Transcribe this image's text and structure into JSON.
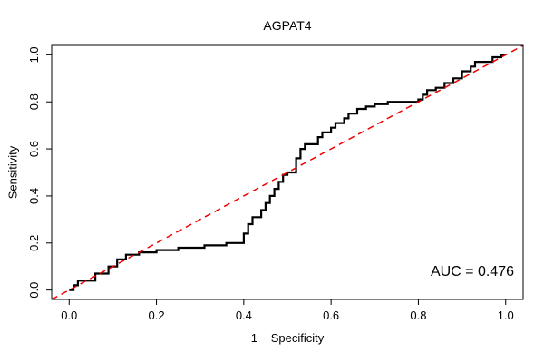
{
  "chart_data": {
    "type": "line",
    "title": "AGPAT4",
    "xlabel": "1 − Specificity",
    "ylabel": "Sensitivity",
    "annotation": "AUC = 0.476",
    "auc": 0.476,
    "xlim": [
      0,
      1
    ],
    "ylim": [
      0,
      1
    ],
    "grid": false,
    "legend": "none",
    "x_ticks": [
      0.0,
      0.2,
      0.4,
      0.6,
      0.8,
      1.0
    ],
    "y_ticks": [
      0.0,
      0.2,
      0.4,
      0.6,
      0.8,
      1.0
    ],
    "x_tick_labels": [
      "0.0",
      "0.2",
      "0.4",
      "0.6",
      "0.8",
      "1.0"
    ],
    "y_tick_labels": [
      "0.0",
      "0.2",
      "0.4",
      "0.6",
      "0.8",
      "1.0"
    ],
    "series": [
      {
        "name": "roc-curve",
        "color": "#000000",
        "width": 2.2,
        "dash": "",
        "span_full": false,
        "points": [
          [
            0.0,
            0.0
          ],
          [
            0.01,
            0.0
          ],
          [
            0.01,
            0.02
          ],
          [
            0.02,
            0.02
          ],
          [
            0.02,
            0.04
          ],
          [
            0.06,
            0.04
          ],
          [
            0.06,
            0.07
          ],
          [
            0.09,
            0.07
          ],
          [
            0.09,
            0.1
          ],
          [
            0.11,
            0.1
          ],
          [
            0.11,
            0.13
          ],
          [
            0.13,
            0.13
          ],
          [
            0.13,
            0.15
          ],
          [
            0.16,
            0.15
          ],
          [
            0.16,
            0.16
          ],
          [
            0.2,
            0.16
          ],
          [
            0.2,
            0.17
          ],
          [
            0.25,
            0.17
          ],
          [
            0.25,
            0.18
          ],
          [
            0.31,
            0.18
          ],
          [
            0.31,
            0.19
          ],
          [
            0.36,
            0.19
          ],
          [
            0.36,
            0.2
          ],
          [
            0.4,
            0.2
          ],
          [
            0.4,
            0.24
          ],
          [
            0.41,
            0.24
          ],
          [
            0.41,
            0.28
          ],
          [
            0.42,
            0.28
          ],
          [
            0.42,
            0.31
          ],
          [
            0.44,
            0.31
          ],
          [
            0.44,
            0.34
          ],
          [
            0.45,
            0.34
          ],
          [
            0.45,
            0.37
          ],
          [
            0.46,
            0.37
          ],
          [
            0.46,
            0.4
          ],
          [
            0.47,
            0.4
          ],
          [
            0.47,
            0.43
          ],
          [
            0.48,
            0.43
          ],
          [
            0.48,
            0.46
          ],
          [
            0.49,
            0.46
          ],
          [
            0.49,
            0.49
          ],
          [
            0.5,
            0.49
          ],
          [
            0.5,
            0.5
          ],
          [
            0.52,
            0.5
          ],
          [
            0.52,
            0.56
          ],
          [
            0.53,
            0.56
          ],
          [
            0.53,
            0.6
          ],
          [
            0.54,
            0.6
          ],
          [
            0.54,
            0.62
          ],
          [
            0.57,
            0.62
          ],
          [
            0.57,
            0.65
          ],
          [
            0.58,
            0.65
          ],
          [
            0.58,
            0.67
          ],
          [
            0.6,
            0.67
          ],
          [
            0.6,
            0.69
          ],
          [
            0.61,
            0.69
          ],
          [
            0.61,
            0.71
          ],
          [
            0.63,
            0.71
          ],
          [
            0.63,
            0.73
          ],
          [
            0.64,
            0.73
          ],
          [
            0.64,
            0.75
          ],
          [
            0.66,
            0.75
          ],
          [
            0.66,
            0.77
          ],
          [
            0.68,
            0.77
          ],
          [
            0.68,
            0.78
          ],
          [
            0.7,
            0.78
          ],
          [
            0.7,
            0.79
          ],
          [
            0.73,
            0.79
          ],
          [
            0.73,
            0.8
          ],
          [
            0.8,
            0.8
          ],
          [
            0.8,
            0.81
          ],
          [
            0.81,
            0.81
          ],
          [
            0.81,
            0.83
          ],
          [
            0.82,
            0.83
          ],
          [
            0.82,
            0.85
          ],
          [
            0.84,
            0.85
          ],
          [
            0.84,
            0.86
          ],
          [
            0.86,
            0.86
          ],
          [
            0.86,
            0.88
          ],
          [
            0.88,
            0.88
          ],
          [
            0.88,
            0.9
          ],
          [
            0.9,
            0.9
          ],
          [
            0.9,
            0.93
          ],
          [
            0.92,
            0.93
          ],
          [
            0.92,
            0.95
          ],
          [
            0.93,
            0.95
          ],
          [
            0.93,
            0.97
          ],
          [
            0.95,
            0.97
          ],
          [
            0.97,
            0.97
          ],
          [
            0.97,
            0.99
          ],
          [
            0.99,
            0.99
          ],
          [
            0.99,
            1.0
          ],
          [
            1.0,
            1.0
          ]
        ]
      },
      {
        "name": "chance-diagonal",
        "color": "#ee0000",
        "width": 1.5,
        "dash": "7,5",
        "span_full": true,
        "points": [
          [
            0,
            0
          ],
          [
            1,
            1
          ]
        ]
      }
    ]
  }
}
